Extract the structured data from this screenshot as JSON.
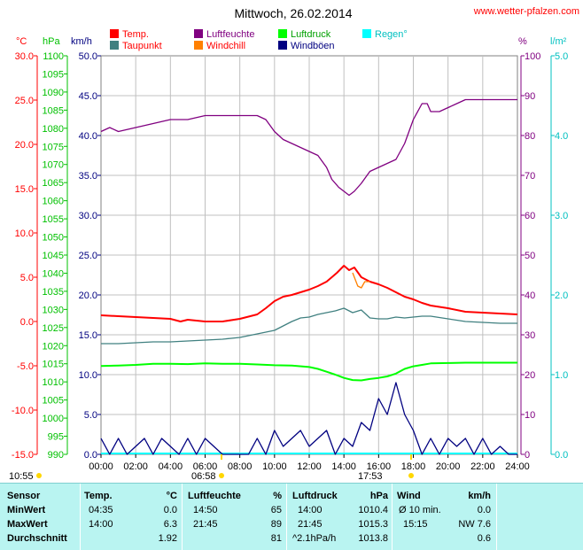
{
  "chart_data": {
    "type": "line",
    "title": "Mittwoch, 26.02.2014",
    "source": "www.wetter-pfalzen.com",
    "x_ticks": [
      "00:00",
      "02:00",
      "04:00",
      "06:00",
      "08:00",
      "10:00",
      "12:00",
      "14:00",
      "16:00",
      "18:00",
      "20:00",
      "22:00",
      "24:00"
    ],
    "axes": {
      "temp": {
        "unit": "°C",
        "color": "#ff0000",
        "ticks": [
          "30.0",
          "25.0",
          "20.0",
          "15.0",
          "10.0",
          "5.0",
          "0.0",
          "-5.0",
          "-10.0",
          "-15.0"
        ],
        "range": [
          -15,
          30
        ]
      },
      "pressure": {
        "unit": "hPa",
        "color": "#00c000",
        "ticks": [
          "1100",
          "1095",
          "1090",
          "1085",
          "1080",
          "1075",
          "1070",
          "1065",
          "1060",
          "1055",
          "1050",
          "1045",
          "1040",
          "1035",
          "1030",
          "1025",
          "1020",
          "1015",
          "1010",
          "1005",
          "1000",
          "995",
          "990"
        ],
        "range": [
          990,
          1100
        ]
      },
      "wind": {
        "unit": "km/h",
        "color": "#000080",
        "ticks": [
          "50.0",
          "45.0",
          "40.0",
          "35.0",
          "30.0",
          "25.0",
          "20.0",
          "15.0",
          "10.0",
          "5.0",
          "0.0"
        ],
        "range": [
          0,
          50
        ]
      },
      "humidity": {
        "unit": "%",
        "color": "#800080",
        "ticks": [
          "100",
          "90",
          "80",
          "70",
          "60",
          "50",
          "40",
          "30",
          "20",
          "10",
          "0"
        ],
        "range": [
          0,
          100
        ]
      },
      "rain": {
        "unit": "l/m²",
        "color": "#00c0c0",
        "ticks": [
          "5.0",
          "4.0",
          "3.0",
          "2.0",
          "1.0",
          "0.0"
        ],
        "range": [
          0,
          5
        ]
      }
    },
    "legend": [
      {
        "name": "Temp.",
        "color": "#ff0000"
      },
      {
        "name": "Luftfeuchte",
        "color": "#800080"
      },
      {
        "name": "Luftdruck",
        "color": "#00ff00"
      },
      {
        "name": "Regen°",
        "color": "#00ffff"
      },
      {
        "name": "Taupunkt",
        "color": "#408080"
      },
      {
        "name": "Windchill",
        "color": "#ff8000"
      },
      {
        "name": "Windböen",
        "color": "#000080"
      }
    ],
    "sun": {
      "sunrise": "06:58",
      "sunset": "17:53",
      "left_time": "10:55"
    },
    "series": [
      {
        "name": "Luftfeuchte",
        "axis": "humidity",
        "color": "#800080",
        "x": [
          0,
          0.5,
          1,
          2,
          3,
          4,
          5,
          6,
          7,
          8,
          9,
          9.5,
          10,
          10.5,
          11,
          11.5,
          12,
          12.5,
          13,
          13.3,
          13.7,
          14,
          14.3,
          14.6,
          15,
          15.5,
          16,
          16.5,
          17,
          17.5,
          18,
          18.5,
          18.8,
          19,
          19.5,
          20,
          20.5,
          21,
          22,
          23,
          24
        ],
        "y": [
          81,
          82,
          81,
          82,
          83,
          84,
          84,
          85,
          85,
          85,
          85,
          84,
          81,
          79,
          78,
          77,
          76,
          75,
          72,
          69,
          67,
          66,
          65,
          66,
          68,
          71,
          72,
          73,
          74,
          78,
          84,
          88,
          88,
          86,
          86,
          87,
          88,
          89,
          89,
          89,
          89
        ]
      },
      {
        "name": "Temp.",
        "axis": "temp",
        "color": "#ff0000",
        "x": [
          0,
          1,
          2,
          3,
          4,
          4.58,
          5,
          6,
          7,
          8,
          9,
          9.5,
          10,
          10.5,
          11,
          11.5,
          12,
          12.5,
          13,
          13.3,
          13.6,
          14,
          14.3,
          14.6,
          15,
          15.5,
          16,
          16.5,
          17,
          17.5,
          18,
          18.5,
          19,
          20,
          21,
          22,
          23,
          24
        ],
        "y": [
          0.7,
          0.6,
          0.5,
          0.4,
          0.3,
          0.0,
          0.2,
          0.0,
          0.0,
          0.3,
          0.8,
          1.5,
          2.3,
          2.8,
          3.0,
          3.3,
          3.6,
          4.0,
          4.5,
          5.0,
          5.5,
          6.3,
          5.8,
          6.1,
          5.0,
          4.5,
          4.2,
          3.8,
          3.3,
          2.8,
          2.5,
          2.1,
          1.8,
          1.5,
          1.1,
          1.0,
          0.9,
          0.8
        ]
      },
      {
        "name": "Windchill",
        "axis": "temp",
        "color": "#ff8000",
        "x": [
          14.5,
          14.8,
          15,
          15.2,
          15.5
        ],
        "y": [
          5.5,
          4.0,
          3.8,
          4.5,
          4.5
        ]
      },
      {
        "name": "Taupunkt",
        "axis": "temp",
        "color": "#408080",
        "x": [
          0,
          1,
          2,
          3,
          4,
          5,
          6,
          7,
          8,
          9,
          10,
          10.5,
          11,
          11.5,
          12,
          12.5,
          13,
          13.5,
          14,
          14.5,
          15,
          15.5,
          16,
          16.5,
          17,
          17.5,
          18,
          18.5,
          19,
          20,
          21,
          22,
          23,
          24
        ],
        "y": [
          -2.5,
          -2.5,
          -2.4,
          -2.3,
          -2.3,
          -2.2,
          -2.1,
          -2.0,
          -1.8,
          -1.4,
          -1.0,
          -0.5,
          0.0,
          0.4,
          0.5,
          0.8,
          1.0,
          1.2,
          1.5,
          1.0,
          1.3,
          0.4,
          0.3,
          0.3,
          0.5,
          0.4,
          0.5,
          0.6,
          0.6,
          0.3,
          0.0,
          -0.1,
          -0.2,
          -0.2
        ]
      },
      {
        "name": "Luftdruck",
        "axis": "pressure",
        "color": "#00ff00",
        "x": [
          0,
          1,
          2,
          3,
          4,
          5,
          6,
          7,
          8,
          9,
          10,
          11,
          12,
          12.5,
          13,
          13.5,
          14,
          14.5,
          15,
          15.5,
          16,
          16.5,
          17,
          17.5,
          18,
          18.5,
          19,
          20,
          21,
          22,
          23,
          24
        ],
        "y": [
          1014.4,
          1014.5,
          1014.7,
          1015.0,
          1015.0,
          1014.9,
          1015.1,
          1015.0,
          1015.0,
          1014.8,
          1014.6,
          1014.5,
          1014.1,
          1013.6,
          1012.8,
          1012.0,
          1011.1,
          1010.5,
          1010.4,
          1010.8,
          1011.1,
          1011.5,
          1012.3,
          1013.6,
          1014.3,
          1014.7,
          1015.1,
          1015.2,
          1015.3,
          1015.3,
          1015.3,
          1015.3
        ]
      },
      {
        "name": "Windböen",
        "axis": "wind",
        "color": "#000080",
        "x": [
          0,
          0.5,
          1,
          1.5,
          2,
          2.5,
          3,
          3.5,
          4,
          4.5,
          5,
          5.5,
          6,
          6.5,
          7,
          7.5,
          8,
          8.5,
          9,
          9.5,
          10,
          10.5,
          11,
          11.5,
          12,
          12.5,
          13,
          13.5,
          14,
          14.5,
          15,
          15.5,
          16,
          16.5,
          17,
          17.5,
          18,
          18.5,
          19,
          19.5,
          20,
          20.5,
          21,
          21.5,
          22,
          22.5,
          23,
          23.5,
          24
        ],
        "y": [
          2,
          0,
          2,
          0,
          1,
          2,
          0,
          2,
          1,
          0,
          2,
          0,
          2,
          1,
          0,
          0,
          0,
          0,
          2,
          0,
          3,
          1,
          2,
          3,
          1,
          2,
          3,
          0,
          2,
          1,
          4,
          3,
          7,
          5,
          9,
          5,
          3,
          0,
          2,
          0,
          2,
          1,
          2,
          0,
          2,
          0,
          1,
          0,
          0
        ]
      }
    ]
  },
  "stats": {
    "headers": [
      "Sensor",
      "Temp.",
      "°C",
      "Luftfeuchte",
      "%",
      "Luftdruck",
      "hPa",
      "Wind",
      "km/h"
    ],
    "rows": [
      {
        "label": "MinWert",
        "temp_time": "04:35",
        "temp_val": "0.0",
        "hum_time": "14:50",
        "hum_val": "65",
        "pres_time": "14:00",
        "pres_val": "1010.4",
        "wind_label": "Ø 10 min.",
        "wind_val": "0.0"
      },
      {
        "label": "MaxWert",
        "temp_time": "14:00",
        "temp_val": "6.3",
        "hum_time": "21:45",
        "hum_val": "89",
        "pres_time": "21:45",
        "pres_val": "1015.3",
        "wind_label": "15:15",
        "wind_val": "NW 7.6"
      },
      {
        "label": "Durchschnitt",
        "temp_time": "",
        "temp_val": "1.92",
        "hum_time": "",
        "hum_val": "81",
        "pres_time": "^2.1hPa/h",
        "pres_val": "1013.8",
        "wind_label": "",
        "wind_val": "0.6"
      }
    ]
  }
}
